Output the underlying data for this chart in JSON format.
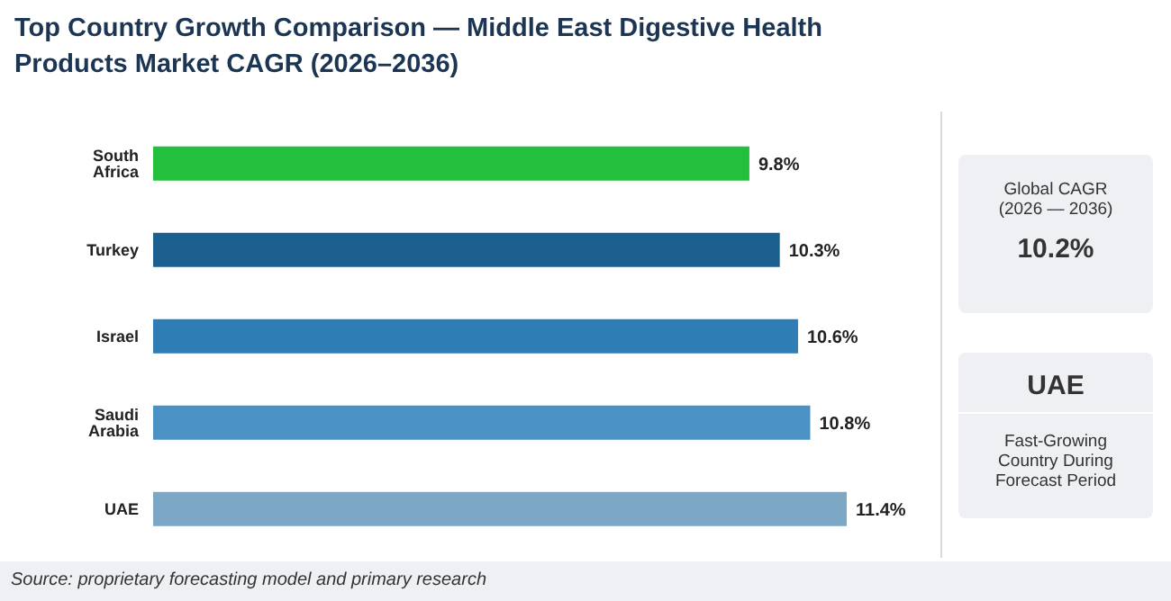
{
  "chart_data": {
    "type": "bar",
    "orientation": "horizontal",
    "title": "Top Country Growth Comparison — Middle East Digestive Health Products Market CAGR (2026–2036)",
    "categories": [
      "South Africa",
      "Turkey",
      "Israel",
      "Saudi Arabia",
      "UAE"
    ],
    "values": [
      9.8,
      10.3,
      10.6,
      10.8,
      11.4
    ],
    "colors": [
      "#22c03c",
      "#1b5f8f",
      "#2f7db5",
      "#4a92c3",
      "#7ca8c6"
    ],
    "value_labels": [
      "9.8%",
      "10.3%",
      "10.6%",
      "10.8%",
      "11.4%"
    ],
    "annotations": [
      "Source: proprietary forecasting model and primary research",
      "Global CAGR (2026 — 2036)",
      "10.2%",
      "UAE",
      "Fast-Growing Country During Forecast Period"
    ]
  }
}
